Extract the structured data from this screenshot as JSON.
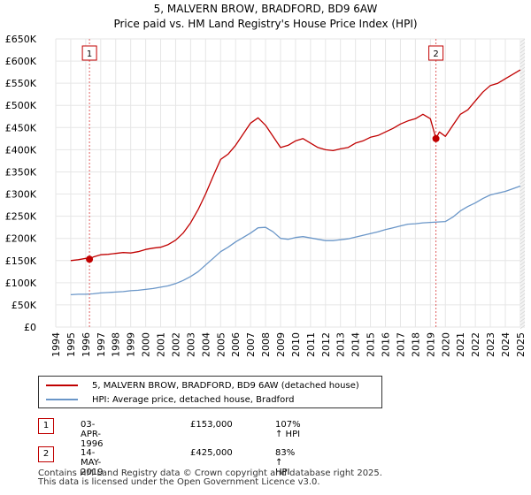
{
  "chart_data": {
    "type": "line",
    "title": "5, MALVERN BROW, BRADFORD, BD9 6AW",
    "subtitle": "Price paid vs. HM Land Registry's House Price Index (HPI)",
    "xlabel": "",
    "ylabel": "",
    "xlim": [
      1994,
      2025.3
    ],
    "ylim": [
      0,
      650000
    ],
    "x_ticks": [
      "1994",
      "1995",
      "1996",
      "1997",
      "1998",
      "1999",
      "2000",
      "2001",
      "2002",
      "2003",
      "2004",
      "2005",
      "2006",
      "2007",
      "2008",
      "2009",
      "2010",
      "2011",
      "2012",
      "2013",
      "2014",
      "2015",
      "2016",
      "2017",
      "2018",
      "2019",
      "2020",
      "2021",
      "2022",
      "2023",
      "2024",
      "2025"
    ],
    "y_ticks": [
      "£0",
      "£50K",
      "£100K",
      "£150K",
      "£200K",
      "£250K",
      "£300K",
      "£350K",
      "£400K",
      "£450K",
      "£500K",
      "£550K",
      "£600K",
      "£650K"
    ],
    "series": [
      {
        "name": "5, MALVERN BROW, BRADFORD, BD9 6AW (detached house)",
        "color": "#c00000",
        "x": [
          1995.0,
          1995.5,
          1996.0,
          1996.25,
          1996.5,
          1997.0,
          1997.5,
          1998.0,
          1998.5,
          1999.0,
          1999.5,
          2000.0,
          2000.5,
          2001.0,
          2001.5,
          2002.0,
          2002.5,
          2003.0,
          2003.5,
          2004.0,
          2004.5,
          2005.0,
          2005.5,
          2006.0,
          2006.5,
          2007.0,
          2007.5,
          2008.0,
          2008.5,
          2009.0,
          2009.5,
          2010.0,
          2010.5,
          2011.0,
          2011.5,
          2012.0,
          2012.5,
          2013.0,
          2013.5,
          2014.0,
          2014.5,
          2015.0,
          2015.5,
          2016.0,
          2016.5,
          2017.0,
          2017.5,
          2018.0,
          2018.5,
          2019.0,
          2019.37,
          2019.6,
          2020.0,
          2020.5,
          2021.0,
          2021.5,
          2022.0,
          2022.5,
          2023.0,
          2023.5,
          2024.0,
          2024.5,
          2025.0
        ],
        "values": [
          150000,
          152000,
          155000,
          153000,
          158000,
          163000,
          164000,
          166000,
          168000,
          167000,
          170000,
          175000,
          178000,
          180000,
          186000,
          196000,
          212000,
          235000,
          265000,
          300000,
          340000,
          378000,
          390000,
          410000,
          435000,
          460000,
          472000,
          455000,
          430000,
          405000,
          410000,
          420000,
          425000,
          415000,
          405000,
          400000,
          398000,
          402000,
          405000,
          415000,
          420000,
          428000,
          432000,
          440000,
          448000,
          458000,
          465000,
          470000,
          480000,
          470000,
          425000,
          440000,
          430000,
          455000,
          480000,
          490000,
          510000,
          530000,
          545000,
          550000,
          560000,
          570000,
          580000
        ]
      },
      {
        "name": "HPI: Average price, detached house, Bradford",
        "color": "#6a96c8",
        "x": [
          1995.0,
          1995.5,
          1996.0,
          1996.5,
          1997.0,
          1997.5,
          1998.0,
          1998.5,
          1999.0,
          1999.5,
          2000.0,
          2000.5,
          2001.0,
          2001.5,
          2002.0,
          2002.5,
          2003.0,
          2003.5,
          2004.0,
          2004.5,
          2005.0,
          2005.5,
          2006.0,
          2006.5,
          2007.0,
          2007.5,
          2008.0,
          2008.5,
          2009.0,
          2009.5,
          2010.0,
          2010.5,
          2011.0,
          2011.5,
          2012.0,
          2012.5,
          2013.0,
          2013.5,
          2014.0,
          2014.5,
          2015.0,
          2015.5,
          2016.0,
          2016.5,
          2017.0,
          2017.5,
          2018.0,
          2018.5,
          2019.0,
          2019.5,
          2020.0,
          2020.5,
          2021.0,
          2021.5,
          2022.0,
          2022.5,
          2023.0,
          2023.5,
          2024.0,
          2024.5,
          2025.0
        ],
        "values": [
          73000,
          74000,
          74000,
          75000,
          77000,
          78000,
          79000,
          80000,
          82000,
          83000,
          85000,
          87000,
          90000,
          93000,
          98000,
          105000,
          114000,
          125000,
          140000,
          155000,
          170000,
          180000,
          192000,
          202000,
          212000,
          224000,
          225000,
          215000,
          200000,
          198000,
          202000,
          204000,
          201000,
          198000,
          195000,
          195000,
          197000,
          199000,
          203000,
          207000,
          211000,
          215000,
          220000,
          224000,
          228000,
          232000,
          233000,
          235000,
          236000,
          237000,
          238000,
          248000,
          262000,
          272000,
          280000,
          290000,
          298000,
          302000,
          306000,
          312000,
          318000
        ]
      }
    ],
    "sales": [
      {
        "label": "1",
        "x": 1996.25,
        "value": 153000
      },
      {
        "label": "2",
        "x": 2019.37,
        "value": 425000
      }
    ]
  },
  "legend": {
    "items": [
      {
        "label": "5, MALVERN BROW, BRADFORD, BD9 6AW (detached house)",
        "color": "#c00000"
      },
      {
        "label": "HPI: Average price, detached house, Bradford",
        "color": "#6a96c8"
      }
    ]
  },
  "transactions": [
    {
      "num": "1",
      "date": "03-APR-1996",
      "price": "£153,000",
      "hpi": "107% ↑ HPI"
    },
    {
      "num": "2",
      "date": "14-MAY-2019",
      "price": "£425,000",
      "hpi": "83% ↑ HPI"
    }
  ],
  "footer": {
    "line1": "Contains HM Land Registry data © Crown copyright and database right 2025.",
    "line2": "This data is licensed under the Open Government Licence v3.0."
  }
}
